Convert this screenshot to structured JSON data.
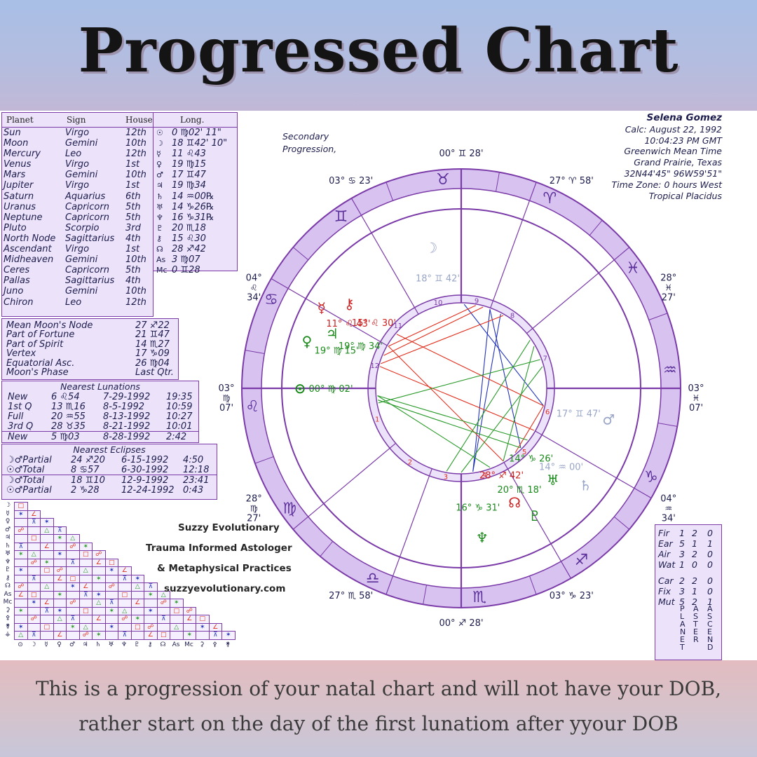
{
  "title": "Progressed Chart",
  "caption": {
    "line1": "This is a progression of your natal chart and will not have your DOB,",
    "line2": "rather start on the day of the first lunatiom after yyour DOB"
  },
  "chart_info": {
    "name": "Selena Gomez",
    "calc": "Calc: August 22, 1992",
    "time": "10:04:23 PM GMT",
    "tz_label": "Greenwich Mean Time",
    "place": "Grand Prairie, Texas",
    "coords": "32N44'45\"  96W59'51\"",
    "time_zone": "Time Zone: 0 hours West",
    "system": "Tropical Placidus"
  },
  "progression_label": {
    "line1": "Secondary",
    "line2": "Progression,"
  },
  "planet_table": {
    "headers": {
      "planet": "Planet",
      "sign": "Sign",
      "house": "House",
      "long": "Long."
    },
    "rows": [
      {
        "planet": "Sun",
        "sign": "Virgo",
        "house": "12th",
        "glyph": "☉",
        "long": "0 ♍02' 11\""
      },
      {
        "planet": "Moon",
        "sign": "Gemini",
        "house": "10th",
        "glyph": "☽",
        "long": "18 ♊42' 10\""
      },
      {
        "planet": "Mercury",
        "sign": "Leo",
        "house": "12th",
        "glyph": "☿",
        "long": "11 ♌43"
      },
      {
        "planet": "Venus",
        "sign": "Virgo",
        "house": "1st",
        "glyph": "♀",
        "long": "19 ♍15"
      },
      {
        "planet": "Mars",
        "sign": "Gemini",
        "house": "10th",
        "glyph": "♂",
        "long": "17 ♊47"
      },
      {
        "planet": "Jupiter",
        "sign": "Virgo",
        "house": "1st",
        "glyph": "♃",
        "long": "19 ♍34"
      },
      {
        "planet": "Saturn",
        "sign": "Aquarius",
        "house": "6th",
        "glyph": "♄",
        "long": "14 ♒00℞"
      },
      {
        "planet": "Uranus",
        "sign": "Capricorn",
        "house": "5th",
        "glyph": "♅",
        "long": "14 ♑26℞"
      },
      {
        "planet": "Neptune",
        "sign": "Capricorn",
        "house": "5th",
        "glyph": "♆",
        "long": "16 ♑31℞"
      },
      {
        "planet": "Pluto",
        "sign": "Scorpio",
        "house": "3rd",
        "glyph": "♇",
        "long": "20 ♏18"
      },
      {
        "planet": "North Node",
        "sign": "Sagittarius",
        "house": "4th",
        "glyph": "⚷",
        "long": "15 ♌30"
      },
      {
        "planet": "Ascendant",
        "sign": "Virgo",
        "house": "1st",
        "glyph": "☊",
        "long": "28 ♐42"
      },
      {
        "planet": "Midheaven",
        "sign": "Gemini",
        "house": "10th",
        "glyph": "As",
        "long": "3 ♍07"
      },
      {
        "planet": "Ceres",
        "sign": "Capricorn",
        "house": "5th",
        "glyph": "Mc",
        "long": "0 ♊28"
      },
      {
        "planet": "Pallas",
        "sign": "Sagittarius",
        "house": "4th",
        "glyph": "",
        "long": ""
      },
      {
        "planet": "Juno",
        "sign": "Gemini",
        "house": "10th",
        "glyph": "",
        "long": ""
      },
      {
        "planet": "Chiron",
        "sign": "Leo",
        "house": "12th",
        "glyph": "",
        "long": ""
      }
    ]
  },
  "points_table": [
    {
      "label": "Mean Moon's Node",
      "value": "27 ♐22"
    },
    {
      "label": "Part of Fortune",
      "value": "21 ♊47"
    },
    {
      "label": "Part of Spirit",
      "value": "14 ♏27"
    },
    {
      "label": "Vertex",
      "value": "17 ♑09"
    },
    {
      "label": "Equatorial Asc.",
      "value": "26 ♍04"
    },
    {
      "label": "Moon's Phase",
      "value": "Last Qtr."
    }
  ],
  "lunations": {
    "title": "Nearest Lunations",
    "rows": [
      {
        "phase": "New",
        "pos": "6 ♌54",
        "date": "7-29-1992",
        "time": "19:35"
      },
      {
        "phase": "1st Q",
        "pos": "13 ♏16",
        "date": "8-5-1992",
        "time": "10:59"
      },
      {
        "phase": "Full",
        "pos": "20 ♒55",
        "date": "8-13-1992",
        "time": "10:27"
      },
      {
        "phase": "3rd Q",
        "pos": "28 ♉35",
        "date": "8-21-1992",
        "time": "10:01"
      },
      {
        "phase": "New",
        "pos": "5 ♍03",
        "date": "8-28-1992",
        "time": "2:42"
      }
    ]
  },
  "eclipses": {
    "title": "Nearest Eclipses",
    "rows": [
      {
        "type": "☽♂Partial",
        "pos": "24 ♐20",
        "date": "6-15-1992",
        "time": "4:50"
      },
      {
        "type": "☉♂Total",
        "pos": "8 ♋57",
        "date": "6-30-1992",
        "time": "12:18"
      },
      {
        "type": "☽♂Total",
        "pos": "18 ♊10",
        "date": "12-9-1992",
        "time": "23:41"
      },
      {
        "type": "☉♂Partial",
        "pos": "2 ♑28",
        "date": "12-24-1992",
        "time": "0:43"
      }
    ]
  },
  "branding": {
    "line1": "Suzzy Evolutionary",
    "line2": "Trauma Informed Astologer",
    "line3": "& Metaphysical Practices",
    "line4": "suzzyevolutionary.com"
  },
  "elements": {
    "rows": [
      {
        "label": "Fir",
        "a": "1",
        "b": "2",
        "c": "0"
      },
      {
        "label": "Ear",
        "a": "5",
        "b": "1",
        "c": "1"
      },
      {
        "label": "Air",
        "a": "3",
        "b": "2",
        "c": "0"
      },
      {
        "label": "Wat",
        "a": "1",
        "b": "0",
        "c": "0"
      },
      {
        "label": "Car",
        "a": "2",
        "b": "2",
        "c": "0"
      },
      {
        "label": "Fix",
        "a": "3",
        "b": "1",
        "c": "0"
      },
      {
        "label": "Mut",
        "a": "5",
        "b": "2",
        "c": "1"
      }
    ],
    "footer_cols": [
      "PLANET",
      "ASTER",
      "ASCEND"
    ]
  },
  "aspect_grid_glyphs": [
    "☽",
    "☿",
    "♀",
    "♂",
    "♃",
    "♄",
    "♅",
    "♆",
    "♇",
    "⚷",
    "☊",
    "As",
    "Mc",
    "⚳",
    "⚴",
    "⚵",
    "⚶"
  ],
  "aspect_grid_bottom": [
    "⊙",
    "☽",
    "☿",
    "♀",
    "♂",
    "♃",
    "♄",
    "♅",
    "♆",
    "♇",
    "⚷",
    "☊",
    "As",
    "Mc",
    "⚳",
    "⚴",
    "⚵"
  ],
  "wheel": {
    "signs_outer": [
      "♉",
      "♈",
      "♓",
      "♒",
      "♑",
      "♐",
      "♏",
      "♎",
      "♍",
      "♌",
      "♋",
      "♊"
    ],
    "house_numbers": [
      "1",
      "2",
      "3",
      "4",
      "5",
      "6",
      "7",
      "8",
      "9",
      "10",
      "11",
      "12"
    ],
    "cusp_labels": [
      {
        "deg": "00°",
        "sign": "♊",
        "min": "28'"
      },
      {
        "deg": "27°",
        "sign": "♈",
        "min": "58'"
      },
      {
        "deg": "28°",
        "sign": "♓",
        "min": "27'"
      },
      {
        "deg": "03°",
        "sign": "♓",
        "min": "07'"
      },
      {
        "deg": "04°",
        "sign": "♒",
        "min": "34'"
      },
      {
        "deg": "03°",
        "sign": "♑",
        "min": "23'"
      },
      {
        "deg": "00°",
        "sign": "♐",
        "min": "28'"
      },
      {
        "deg": "27°",
        "sign": "♏",
        "min": "58'"
      },
      {
        "deg": "28°",
        "sign": "♍",
        "min": "27'"
      },
      {
        "deg": "03°",
        "sign": "♍",
        "min": "07'"
      },
      {
        "deg": "04°",
        "sign": "♌",
        "min": "34'"
      },
      {
        "deg": "03°",
        "sign": "♋",
        "min": "23'"
      }
    ],
    "planet_labels": [
      {
        "glyph": "⊙",
        "deg": "00°",
        "sign": "♍",
        "min": "02'",
        "color": "#1a8a1a"
      },
      {
        "glyph": "♀",
        "deg": "19°",
        "sign": "♍",
        "min": "15'",
        "color": "#1a8a1a"
      },
      {
        "glyph": "♃",
        "deg": "19°",
        "sign": "♍",
        "min": "34'",
        "color": "#1a8a1a"
      },
      {
        "glyph": "☿",
        "deg": "11°",
        "sign": "♌",
        "min": "43'",
        "color": "#cc2222"
      },
      {
        "glyph": "⚷",
        "deg": "15°",
        "sign": "♌",
        "min": "30'",
        "color": "#cc2222"
      },
      {
        "glyph": "☽",
        "deg": "18°",
        "sign": "♊",
        "min": "42'",
        "color": "#9aa6c8"
      },
      {
        "glyph": "♂",
        "deg": "17°",
        "sign": "♊",
        "min": "47'",
        "color": "#9aa6c8"
      },
      {
        "glyph": "♄",
        "deg": "14°",
        "sign": "♒",
        "min": "00'",
        "color": "#9aa6c8"
      },
      {
        "glyph": "♅",
        "deg": "14°",
        "sign": "♑",
        "min": "26'",
        "color": "#1a8a1a"
      },
      {
        "glyph": "♆",
        "deg": "16°",
        "sign": "♑",
        "min": "31'",
        "color": "#1a8a1a"
      },
      {
        "glyph": "♇",
        "deg": "20°",
        "sign": "♏",
        "min": "18'",
        "color": "#1a8a1a"
      },
      {
        "glyph": "☊",
        "deg": "28°",
        "sign": "♐",
        "min": "42'",
        "color": "#cc2222"
      }
    ]
  },
  "colors": {
    "frame": "#7a3aa8",
    "ring": "#d8c3f0",
    "panel": "#ece3fb",
    "text": "#1d1d4d",
    "aspect_red": "#e0301e",
    "aspect_blue": "#2233bb",
    "aspect_green": "#2a9a2a"
  }
}
